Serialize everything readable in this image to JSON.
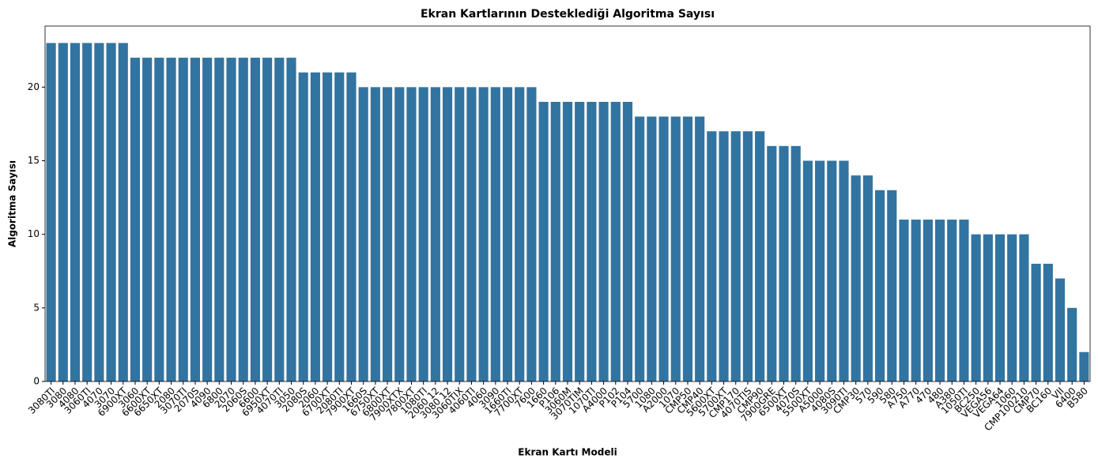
{
  "chart_data": {
    "type": "bar",
    "title": "Ekran Kartlarının Desteklediği Algoritma Sayısı",
    "x_label": "Ekran Kartı Modeli",
    "y_label": "Algoritma Sayısı",
    "color": "#3274a1",
    "categories": [
      "3080TI",
      "3080",
      "4080",
      "3060TI",
      "4070",
      "3070",
      "6900XT",
      "3060",
      "6600XT",
      "6650XT",
      "2080",
      "3070TI",
      "2070S",
      "4090",
      "6800",
      "2070",
      "2060S",
      "6600",
      "6950XT",
      "4070TI",
      "3050",
      "2080S",
      "2060",
      "6700XT",
      "2080TI",
      "7900XT",
      "1660S",
      "6750XT",
      "6800XT",
      "7900XTX",
      "7800XT",
      "1080TI",
      "2060 12",
      "3080 12",
      "3060TIX",
      "4060TI",
      "4060",
      "3090",
      "1660TI",
      "7700XT",
      "7600",
      "1660",
      "P106",
      "3060M",
      "3070TIM",
      "1070TI",
      "A4000",
      "P102",
      "P104",
      "5700",
      "1080",
      "A2000",
      "1070",
      "CMP50",
      "CMP40",
      "5600XT",
      "5700XT",
      "CMP170",
      "4070TIS",
      "CMP90",
      "7900GRE",
      "6500XT",
      "4070S",
      "5500XT",
      "A5000",
      "4080S",
      "3090TI",
      "CMP30",
      "570",
      "590",
      "580",
      "A750",
      "A770",
      "470",
      "480",
      "A380",
      "1050TI",
      "BC250",
      "VEGA56",
      "VEGA64",
      "1060",
      "CMP100210",
      "CMP70",
      "BC160",
      "VII",
      "6400",
      "B580"
    ],
    "values": [
      23,
      23,
      23,
      23,
      23,
      23,
      23,
      22,
      22,
      22,
      22,
      22,
      22,
      22,
      22,
      22,
      22,
      22,
      22,
      22,
      22,
      21,
      21,
      21,
      21,
      21,
      20,
      20,
      20,
      20,
      20,
      20,
      20,
      20,
      20,
      20,
      20,
      20,
      20,
      20,
      20,
      19,
      19,
      19,
      19,
      19,
      19,
      19,
      19,
      18,
      18,
      18,
      18,
      18,
      18,
      17,
      17,
      17,
      17,
      17,
      16,
      16,
      16,
      15,
      15,
      15,
      15,
      14,
      14,
      13,
      13,
      11,
      11,
      11,
      11,
      11,
      11,
      10,
      10,
      10,
      10,
      10,
      8,
      8,
      7,
      5,
      2
    ],
    "ylim": [
      0,
      24.15
    ],
    "yticks": [
      0,
      5,
      10,
      15,
      20
    ]
  }
}
